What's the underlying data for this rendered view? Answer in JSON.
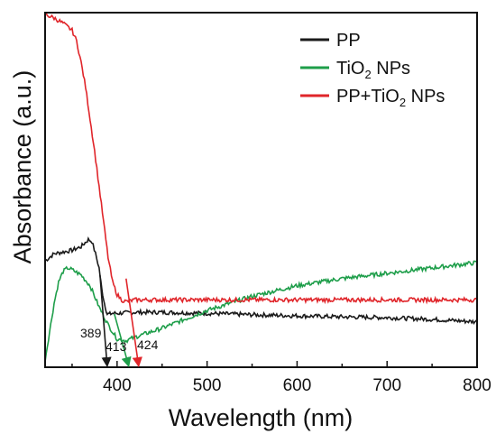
{
  "chart_data": {
    "type": "line",
    "xlabel": "Wavelength (nm)",
    "ylabel": "Absorbance (a.u.)",
    "xlim": [
      320,
      800
    ],
    "ylim": [
      0,
      1
    ],
    "y_ticks_labeled": false,
    "x_ticks": [
      400,
      500,
      600,
      700,
      800
    ],
    "x_tick_labels": [
      "400",
      "500",
      "600",
      "700",
      "800"
    ],
    "grid": false,
    "legend_position": "top-right",
    "series": [
      {
        "name": "PP",
        "color": "#1a1a1a",
        "x": [
          320,
          330,
          340,
          350,
          360,
          368,
          372,
          376,
          380,
          383,
          386,
          389,
          392,
          395,
          400,
          420,
          450,
          500,
          550,
          600,
          650,
          700,
          750,
          800
        ],
        "y": [
          0.3,
          0.32,
          0.325,
          0.33,
          0.34,
          0.36,
          0.355,
          0.32,
          0.28,
          0.22,
          0.18,
          0.15,
          0.15,
          0.152,
          0.152,
          0.155,
          0.155,
          0.152,
          0.148,
          0.145,
          0.142,
          0.14,
          0.135,
          0.128
        ]
      },
      {
        "name_main": "TiO",
        "name_sub": "2",
        "name_rest": " NPs",
        "color": "#1e9e4a",
        "x": [
          320,
          325,
          330,
          335,
          340,
          345,
          350,
          360,
          370,
          380,
          390,
          400,
          410,
          420,
          450,
          500,
          550,
          600,
          650,
          700,
          750,
          800
        ],
        "y": [
          0.02,
          0.1,
          0.18,
          0.24,
          0.27,
          0.28,
          0.275,
          0.26,
          0.23,
          0.17,
          0.12,
          0.08,
          0.075,
          0.085,
          0.11,
          0.16,
          0.2,
          0.23,
          0.25,
          0.265,
          0.28,
          0.295
        ]
      },
      {
        "name_main": "PP+TiO",
        "name_sub": "2",
        "name_rest": " NPs",
        "color": "#e0252a",
        "x": [
          320,
          330,
          340,
          350,
          355,
          360,
          365,
          370,
          375,
          380,
          385,
          390,
          395,
          400,
          405,
          410,
          420,
          450,
          500,
          550,
          600,
          650,
          700,
          750,
          800
        ],
        "y": [
          0.995,
          0.985,
          0.97,
          0.95,
          0.92,
          0.86,
          0.79,
          0.7,
          0.61,
          0.51,
          0.41,
          0.31,
          0.24,
          0.205,
          0.19,
          0.185,
          0.19,
          0.19,
          0.19,
          0.19,
          0.19,
          0.19,
          0.19,
          0.19,
          0.19
        ]
      }
    ],
    "annotations": [
      {
        "label": "389",
        "x_data": 389,
        "color": "#1a1a1a",
        "start_x": 381,
        "start_y": 0.26
      },
      {
        "label": "413",
        "x_data": 413,
        "color": "#1e9e4a",
        "start_x": 397,
        "start_y": 0.15
      },
      {
        "label": "424",
        "x_data": 424,
        "color": "#e0252a",
        "start_x": 410,
        "start_y": 0.25
      }
    ]
  }
}
